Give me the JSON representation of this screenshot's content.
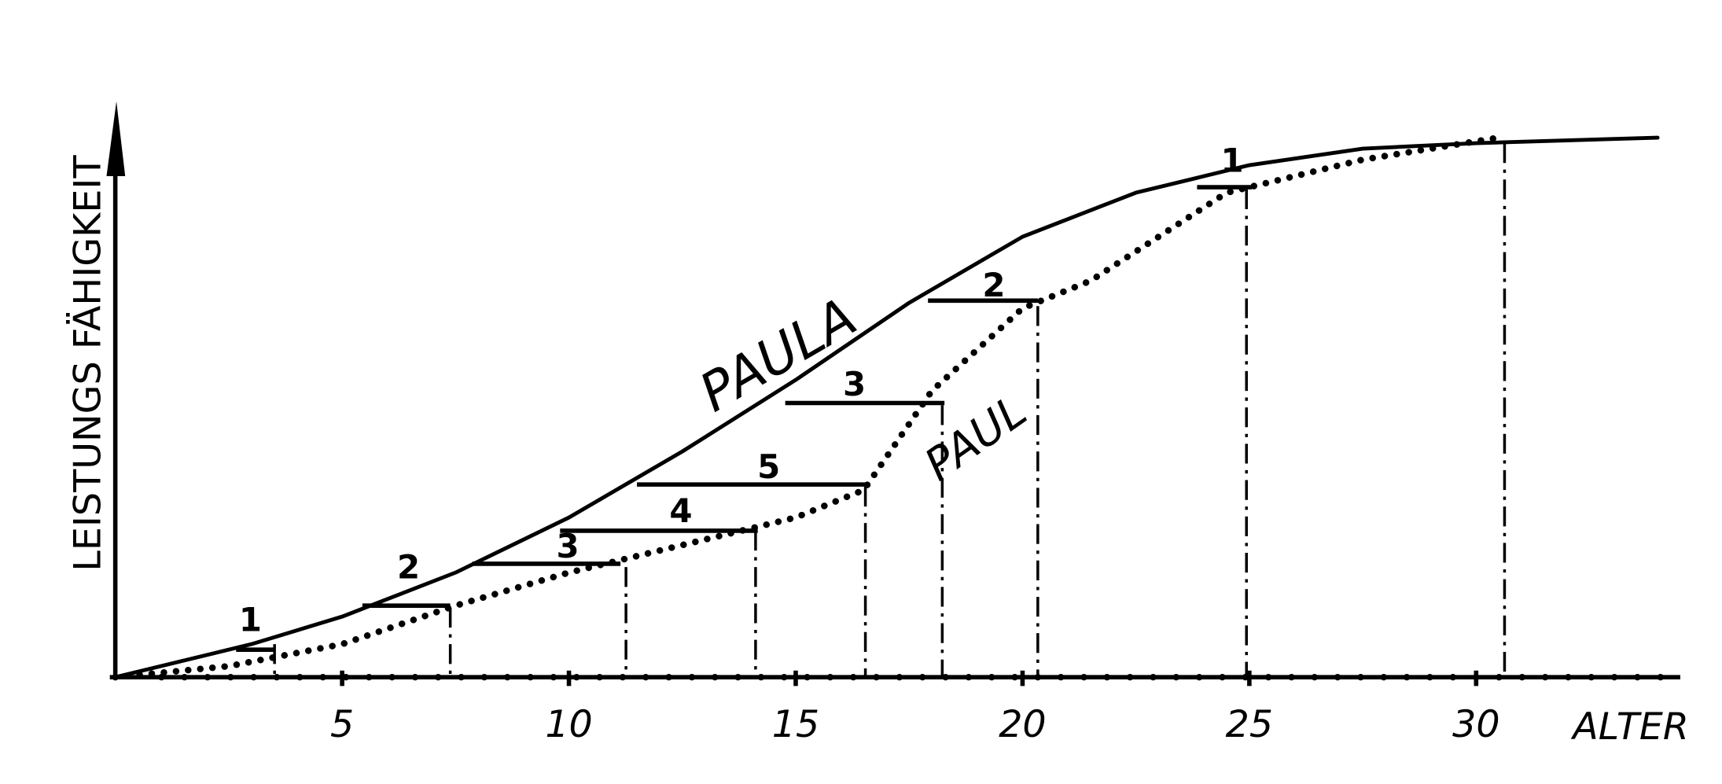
{
  "chart_data": {
    "type": "line",
    "x_label": "ALTER",
    "y_label": "LEISTUNGS FÄHIGKEIT",
    "xlim": [
      0,
      34.5
    ],
    "ylim": [
      0,
      100
    ],
    "xticks": [
      5,
      10,
      15,
      20,
      25,
      30
    ],
    "series": [
      {
        "name": "PAULA",
        "color": "#000000",
        "style": "solid",
        "x": [
          0,
          3,
          5,
          7.5,
          10,
          12.5,
          15,
          17.5,
          20,
          22.5,
          25,
          27.5,
          30,
          34
        ],
        "values": [
          0,
          6,
          11,
          19,
          29,
          41,
          54,
          68,
          80,
          88,
          93,
          96,
          97,
          98
        ]
      },
      {
        "name": "PAUL",
        "color": "#000000",
        "style": "dotted",
        "x": [
          0,
          2.5,
          5,
          7.5,
          10,
          12.5,
          15,
          16.5,
          18,
          20,
          21.5,
          24.5,
          27.5,
          30.5
        ],
        "values": [
          0,
          2,
          6,
          13,
          19,
          24,
          29,
          34,
          52,
          67,
          72,
          88,
          94,
          98
        ]
      }
    ],
    "annotations": [
      "1",
      "2",
      "3",
      "4",
      "5",
      "3",
      "2",
      "1"
    ]
  }
}
